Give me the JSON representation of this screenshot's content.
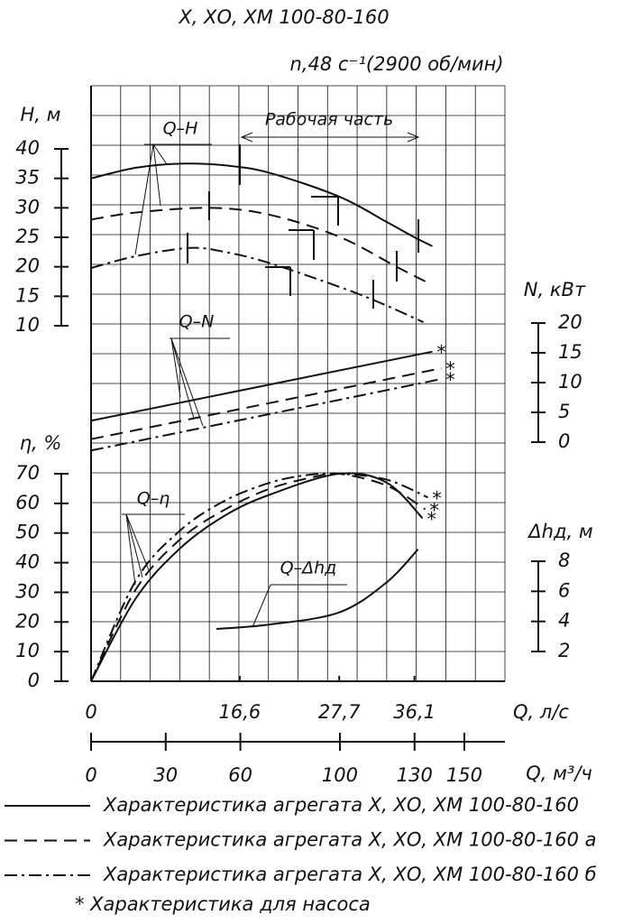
{
  "chart_data": {
    "type": "line",
    "title": "Х, ХО, ХМ 100-80-160",
    "subtitle": "n,48 с⁻¹(2900 об/мин)",
    "xlabel": "Q, л/с",
    "xlim": [
      0,
      46.2
    ],
    "xticks": [
      0,
      {
        "value": 16.6,
        "label": "16,6"
      },
      {
        "value": 27.7,
        "label": "27,7"
      },
      {
        "value": 36.1,
        "label": "36,1"
      }
    ],
    "x2label": "Q, м³/ч",
    "x2ticks": [
      0,
      30,
      60,
      100,
      130,
      150
    ],
    "axes": {
      "H": {
        "label": "H, м",
        "ylim": [
          10,
          40
        ],
        "yticks": [
          10,
          15,
          20,
          25,
          30,
          35,
          40
        ]
      },
      "N": {
        "label": "N, кВт",
        "ylim": [
          0,
          20
        ],
        "yticks": [
          0,
          5,
          10,
          15,
          20
        ]
      },
      "eta": {
        "label": "η, %",
        "ylim": [
          0,
          70
        ],
        "yticks": [
          0,
          10,
          20,
          30,
          40,
          50,
          60,
          70
        ]
      },
      "dh": {
        "label": "Δhд, м",
        "ylim": [
          2,
          8
        ],
        "yticks": [
          2,
          4,
          6,
          8
        ]
      }
    },
    "annotations": [
      "Q–H",
      "Q–N",
      "Q–η",
      "Q–Δhд",
      "Рабочая часть"
    ],
    "pump_mark": "*",
    "legend": [
      {
        "name": "Характеристика агрегата Х, ХО, ХМ 100-80-160",
        "dash": "none"
      },
      {
        "name": "Характеристика агрегата Х, ХО, ХМ 100-80-160 а",
        "dash": "14 8"
      },
      {
        "name": "Характеристика агрегата Х, ХО, ХМ 100-80-160 б",
        "dash": "14 5 3 5"
      }
    ],
    "pump_note": "* Характеристика для насоса",
    "color": "#111111",
    "series": [
      {
        "axis": "H",
        "style": 0,
        "x": [
          0,
          5,
          10,
          15,
          20,
          27.7,
          33,
          36.1,
          38.1
        ],
        "values": [
          35,
          36.8,
          37.5,
          37.2,
          35.9,
          31.9,
          27.6,
          25,
          23.5
        ]
      },
      {
        "axis": "H",
        "style": 1,
        "x": [
          0,
          5,
          13.3,
          20,
          27.7,
          34.1,
          37.6
        ],
        "values": [
          28,
          29.2,
          30,
          28.8,
          25.1,
          20,
          17.3
        ]
      },
      {
        "axis": "H",
        "style": 2,
        "x": [
          0,
          5,
          11,
          15,
          20,
          27.7,
          32.1,
          37.1
        ],
        "values": [
          19.8,
          21.8,
          23.2,
          22.5,
          20.6,
          16.6,
          14,
          10.6
        ]
      },
      {
        "axis": "N",
        "style": 0,
        "pump": true,
        "x": [
          0,
          38.1
        ],
        "values": [
          3.6,
          15.2
        ]
      },
      {
        "axis": "N",
        "style": 1,
        "pump": true,
        "x": [
          0,
          39.1
        ],
        "values": [
          0.5,
          12.4
        ]
      },
      {
        "axis": "N",
        "style": 2,
        "pump": true,
        "x": [
          0,
          39.1
        ],
        "values": [
          -1.4,
          10.6
        ]
      },
      {
        "axis": "eta",
        "style": 2,
        "pump": true,
        "x": [
          0,
          5,
          10,
          15,
          20,
          24,
          27.7,
          33,
          37.6
        ],
        "values": [
          0,
          34,
          51,
          61,
          67,
          69.5,
          70,
          68,
          62
        ]
      },
      {
        "axis": "eta",
        "style": 1,
        "pump": true,
        "x": [
          0,
          5,
          10,
          15,
          20,
          25,
          27.7,
          33,
          37.3
        ],
        "values": [
          0,
          31,
          48,
          58,
          65,
          69,
          70,
          66,
          58
        ]
      },
      {
        "axis": "eta",
        "style": 0,
        "pump": true,
        "x": [
          0,
          5,
          10,
          15,
          20,
          27.7,
          33,
          37
        ],
        "values": [
          0,
          28,
          45,
          56,
          63,
          70,
          67,
          55
        ]
      },
      {
        "axis": "dh",
        "style": 0,
        "x": [
          14,
          20,
          27.7,
          33,
          36.5
        ],
        "values": [
          3.5,
          3.8,
          4.6,
          6.6,
          8.8
        ]
      }
    ]
  }
}
